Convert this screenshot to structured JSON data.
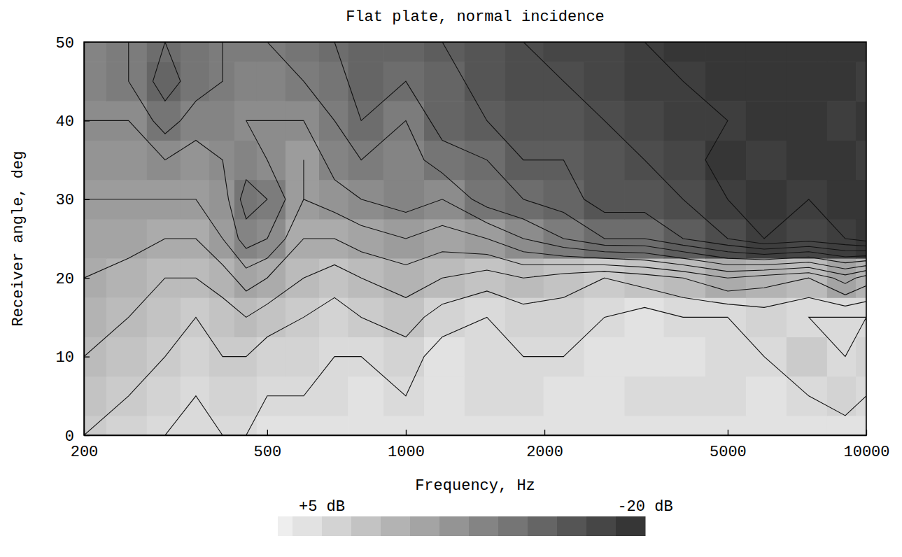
{
  "chart_data": {
    "type": "heatmap",
    "title": "Flat plate, normal incidence",
    "xlabel": "Frequency, Hz",
    "ylabel": "Receiver angle, deg",
    "log": "x",
    "x": [
      200,
      250,
      300,
      350,
      400,
      450,
      500,
      600,
      700,
      800,
      1000,
      1200,
      1500,
      1800,
      2200,
      2700,
      3300,
      4000,
      5000,
      6000,
      7500,
      9000,
      10000
    ],
    "y": [
      0,
      5,
      10,
      15,
      20,
      25,
      30,
      35,
      40,
      45,
      50
    ],
    "z": [
      [
        0,
        1,
        2,
        2,
        2,
        2,
        3,
        3,
        3,
        3,
        3,
        3,
        3,
        3,
        3,
        3,
        3,
        3,
        3,
        3,
        3,
        3,
        3
      ],
      [
        -1,
        0,
        1,
        2,
        1,
        1,
        2,
        2,
        2,
        3,
        2,
        3,
        2,
        2,
        3,
        3,
        2,
        2,
        2,
        3,
        2,
        1,
        2
      ],
      [
        -2,
        -1,
        0,
        1,
        0,
        0,
        1,
        1,
        2,
        2,
        1,
        3,
        2,
        2,
        2,
        3,
        3,
        3,
        2,
        2,
        0,
        2,
        1
      ],
      [
        -3,
        -2,
        -1,
        0,
        -1,
        -2,
        -1,
        0,
        1,
        0,
        -1,
        1,
        2,
        1,
        1,
        2,
        3,
        2,
        2,
        1,
        2,
        2,
        2
      ],
      [
        -4,
        -3,
        -2,
        -2,
        -3,
        -5,
        -4,
        -2,
        -1,
        -2,
        -3,
        -2,
        -1,
        -2,
        -1,
        0,
        -1,
        -2,
        -4,
        -3,
        -2,
        -5,
        -3
      ],
      [
        -5,
        -5,
        -4,
        -4,
        -6,
        -9,
        -8,
        -4,
        -4,
        -5,
        -6,
        -5,
        -6,
        -8,
        -10,
        -12,
        -12,
        -14,
        -16,
        -18,
        -17,
        -18,
        -19
      ],
      [
        -6,
        -6,
        -6,
        -6,
        -7,
        -11,
        -10,
        -6,
        -7,
        -8,
        -9,
        -8,
        -11,
        -12,
        -13,
        -15,
        -15,
        -16,
        -18,
        -19,
        -18,
        -19,
        -19
      ],
      [
        -7,
        -7,
        -8,
        -7,
        -8,
        -9,
        -8,
        -6,
        -9,
        -10,
        -9,
        -11,
        -12,
        -14,
        -14,
        -15,
        -16,
        -17,
        -19,
        -18,
        -19,
        -19,
        -18
      ],
      [
        -8,
        -8,
        -11,
        -9,
        -9,
        -8,
        -8,
        -8,
        -10,
        -12,
        -10,
        -13,
        -14,
        -15,
        -15,
        -16,
        -17,
        -18,
        -18,
        -19,
        -19,
        -18,
        -19
      ],
      [
        -9,
        -10,
        -13,
        -11,
        -10,
        -9,
        -9,
        -10,
        -11,
        -13,
        -12,
        -13,
        -15,
        -16,
        -16,
        -17,
        -18,
        -18,
        -19,
        -19,
        -19,
        -19,
        -18
      ],
      [
        -9,
        -10,
        -12,
        -11,
        -10,
        -10,
        -10,
        -11,
        -12,
        -13,
        -13,
        -14,
        -15,
        -16,
        -17,
        -17,
        -18,
        -19,
        -19,
        -19,
        -19,
        -19,
        -19
      ]
    ],
    "xlim": [
      200,
      10000
    ],
    "ylim": [
      0,
      50
    ],
    "xticks": [
      200,
      500,
      1000,
      2000,
      5000,
      10000
    ],
    "yticks": [
      0,
      10,
      20,
      30,
      40,
      50
    ],
    "colorbar": {
      "range": [
        5,
        -20
      ],
      "ticks": [
        {
          "value": 5,
          "label": "+5 dB"
        },
        {
          "value": -20,
          "label": "-20 dB"
        }
      ]
    }
  }
}
